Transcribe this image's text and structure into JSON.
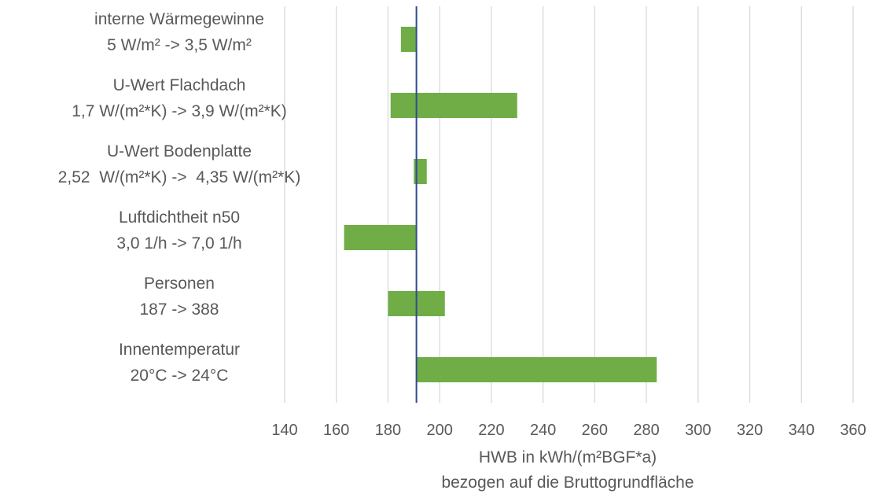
{
  "chart_data": {
    "type": "bar",
    "orientation": "horizontal",
    "subtype": "tornado",
    "baseline": 191,
    "categories": [
      [
        "interne Wärmegewinne",
        "5 W/m² -> 3,5 W/m²"
      ],
      [
        "U-Wert Flachdach",
        "1,7 W/(m²*K) -> 3,9 W/(m²*K)"
      ],
      [
        "U-Wert Bodenplatte",
        "2,52  W/(m²*K) ->  4,35 W/(m²*K)"
      ],
      [
        "Luftdichtheit n50",
        "3,0 1/h -> 7,0 1/h"
      ],
      [
        "Personen",
        "187 -> 388"
      ],
      [
        "Innentemperatur",
        "20°C -> 24°C"
      ]
    ],
    "ranges": [
      [
        185,
        191
      ],
      [
        181,
        230
      ],
      [
        190,
        195
      ],
      [
        163,
        191
      ],
      [
        180,
        202
      ],
      [
        191,
        284
      ]
    ],
    "xlim": [
      140,
      360
    ],
    "xticks": [
      140,
      160,
      180,
      200,
      220,
      240,
      260,
      280,
      300,
      320,
      340,
      360
    ],
    "xlabel": [
      "HWB in kWh/(m²BGF*a)",
      "bezogen auf die Bruttogrundfläche"
    ],
    "grid": true,
    "colors": {
      "bar": "#70ad47",
      "baseline": "#2f4b8f",
      "grid": "#d9d9d9",
      "text": "#595959"
    }
  }
}
